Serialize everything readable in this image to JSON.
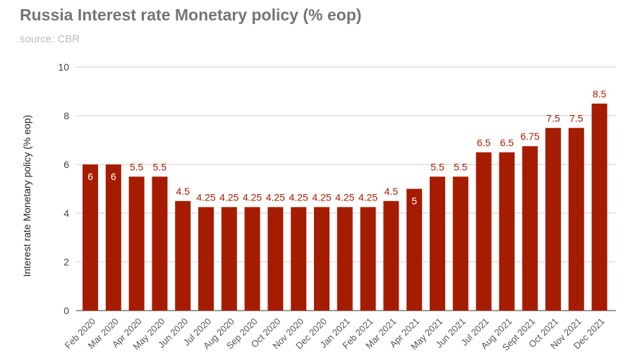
{
  "chart_data": {
    "type": "bar",
    "title": "Russia Interest rate Monetary policy (% eop)",
    "subtitle": "source: CBR",
    "xlabel": "",
    "ylabel": "Interest rate Monetary policy (% eop)",
    "ylim": [
      0,
      10
    ],
    "yticks": [
      0,
      2,
      4,
      6,
      8,
      10
    ],
    "grid": true,
    "legend": "none",
    "bar_color": "#a61c00",
    "categories": [
      "Feb 2020",
      "Mar 2020",
      "Apr 2020",
      "May 2020",
      "Jun 2020",
      "Jul 2020",
      "Aug 2020",
      "Sep 2020",
      "Oct 2020",
      "Nov 2020",
      "Dec 2020",
      "Jan 2021",
      "Feb 2021",
      "Mar 2021",
      "Apr 2021",
      "May 2021",
      "Jun 2021",
      "Jul 2021",
      "Aug 2021",
      "Sept 2021",
      "Oct 2021",
      "Nov 2021",
      "Dec 2021"
    ],
    "values": [
      6,
      6,
      5.5,
      5.5,
      4.5,
      4.25,
      4.25,
      4.25,
      4.25,
      4.25,
      4.25,
      4.25,
      4.25,
      4.5,
      5,
      5.5,
      5.5,
      6.5,
      6.5,
      6.75,
      7.5,
      7.5,
      8.5
    ],
    "data_labels": [
      "6",
      "6",
      "5.5",
      "5.5",
      "4.5",
      "4.25",
      "4.25",
      "4.25",
      "4.25",
      "4.25",
      "4.25",
      "4.25",
      "4.25",
      "4.5",
      "5",
      "5.5",
      "5.5",
      "6.5",
      "6.5",
      "6.75",
      "7.5",
      "7.5",
      "8.5"
    ]
  }
}
